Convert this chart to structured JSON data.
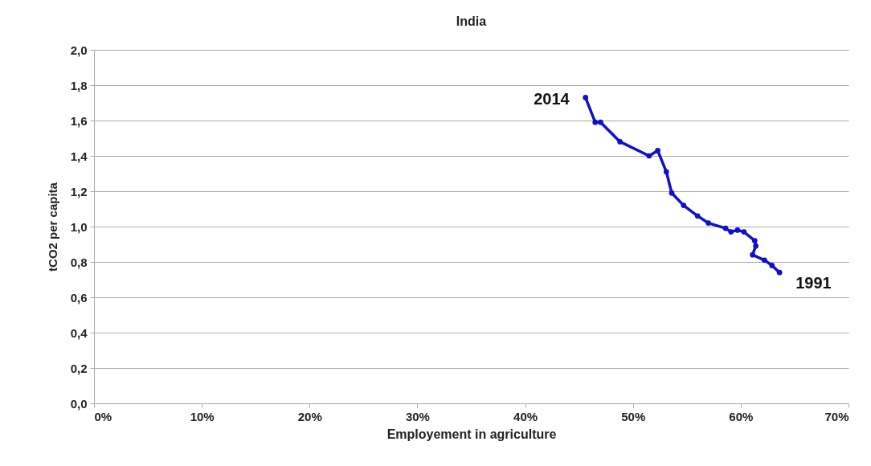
{
  "chart_data": {
    "type": "line",
    "title": "India",
    "xlabel": "Employement in agriculture",
    "ylabel": "tCO2 per capita",
    "series": [
      {
        "color": "#1010cc",
        "x": [
          45.6,
          46.5,
          47.0,
          48.8,
          51.5,
          52.3,
          53.1,
          53.6,
          54.7,
          56.0,
          57.0,
          58.6,
          59.1,
          59.7,
          60.3,
          61.3,
          61.4,
          61.1,
          62.2,
          62.9,
          63.6
        ],
        "values": [
          1.73,
          1.59,
          1.59,
          1.48,
          1.4,
          1.43,
          1.31,
          1.19,
          1.12,
          1.06,
          1.02,
          0.99,
          0.97,
          0.98,
          0.97,
          0.92,
          0.89,
          0.84,
          0.81,
          0.78,
          0.74
        ]
      }
    ],
    "xlim": [
      0,
      70
    ],
    "xticks": [
      {
        "value": 0,
        "label": "0%"
      },
      {
        "value": 10,
        "label": "10%"
      },
      {
        "value": 20,
        "label": "20%"
      },
      {
        "value": 30,
        "label": "30%"
      },
      {
        "value": 40,
        "label": "40%"
      },
      {
        "value": 50,
        "label": "50%"
      },
      {
        "value": 60,
        "label": "60%"
      },
      {
        "value": 70,
        "label": "70%"
      }
    ],
    "ylim": [
      0,
      2
    ],
    "yticks": [
      {
        "value": 0,
        "label": "0,0"
      },
      {
        "value": 0.2,
        "label": "0,2"
      },
      {
        "value": 0.4,
        "label": "0,4"
      },
      {
        "value": 0.6,
        "label": "0,6"
      },
      {
        "value": 0.8,
        "label": "0,8"
      },
      {
        "value": 1,
        "label": "1,0"
      },
      {
        "value": 1.2,
        "label": "1,2"
      },
      {
        "value": 1.4,
        "label": "1,4"
      },
      {
        "value": 1.6,
        "label": "1,6"
      },
      {
        "value": 1.8,
        "label": "1,8"
      },
      {
        "value": 2,
        "label": "2,0"
      }
    ],
    "annotations": [
      {
        "text": "2014",
        "x": 45.6,
        "y": 1.73
      },
      {
        "text": "1991",
        "x": 63.6,
        "y": 0.74
      }
    ],
    "grid": "y",
    "marker": "circle",
    "line_style": "solid"
  }
}
